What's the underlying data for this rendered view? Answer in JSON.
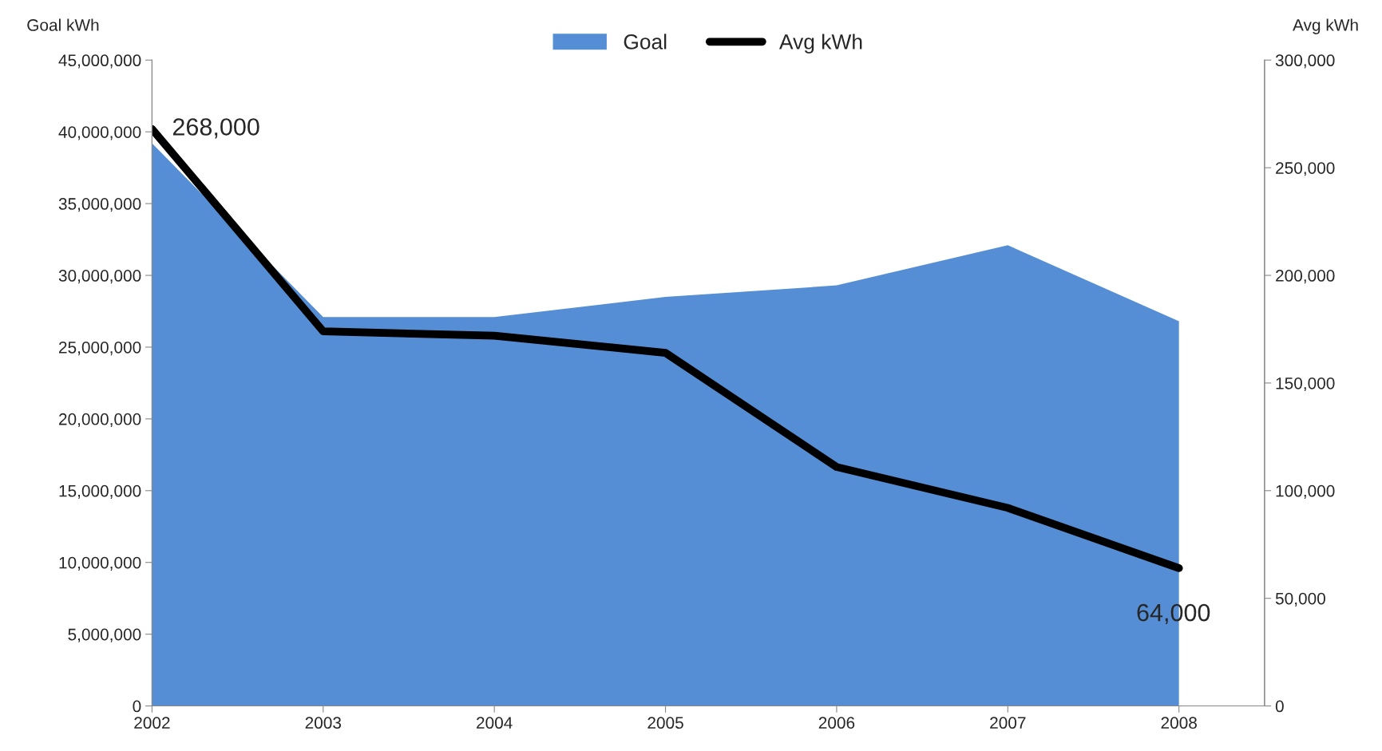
{
  "chart_data": {
    "type": "area",
    "categories": [
      "2002",
      "2003",
      "2004",
      "2005",
      "2006",
      "2007",
      "2008"
    ],
    "series": [
      {
        "name": "Goal",
        "color": "#558ed5",
        "values": [
          39200000,
          27100000,
          27100000,
          28500000,
          29300000,
          32100000,
          26800000
        ]
      },
      {
        "name": "Avg kWh",
        "type": "line",
        "axis": "y2",
        "color": "#000000",
        "values": [
          268000,
          174000,
          172000,
          164000,
          111000,
          92000,
          64000
        ],
        "value_labels": [
          "268,000",
          null,
          null,
          null,
          null,
          null,
          "64,000"
        ]
      }
    ],
    "ylabel": "Goal kWh",
    "y2label": "Avg kWh",
    "ylim": [
      0,
      45000000
    ],
    "yticks": [
      0,
      {
        "value": 5000000,
        "label": "5,000,000"
      },
      {
        "value": 10000000,
        "label": "10,000,000"
      },
      {
        "value": 15000000,
        "label": "15,000,000"
      },
      {
        "value": 20000000,
        "label": "20,000,000"
      },
      {
        "value": 25000000,
        "label": "25,000,000"
      },
      {
        "value": 30000000,
        "label": "30,000,000"
      },
      {
        "value": 35000000,
        "label": "35,000,000"
      },
      {
        "value": 40000000,
        "label": "40,000,000"
      },
      {
        "value": 45000000,
        "label": "45,000,000"
      }
    ],
    "y2lim": [
      0,
      300000
    ],
    "y2ticks": [
      0,
      {
        "value": 50000,
        "label": "50,000"
      },
      {
        "value": 100000,
        "label": "100,000"
      },
      {
        "value": 150000,
        "label": "150,000"
      },
      {
        "value": 200000,
        "label": "200,000"
      },
      {
        "value": 250000,
        "label": "250,000"
      },
      {
        "value": 300000,
        "label": "300,000"
      }
    ],
    "grid": false,
    "legend": "top",
    "marker": "none",
    "line_style": "solid"
  }
}
